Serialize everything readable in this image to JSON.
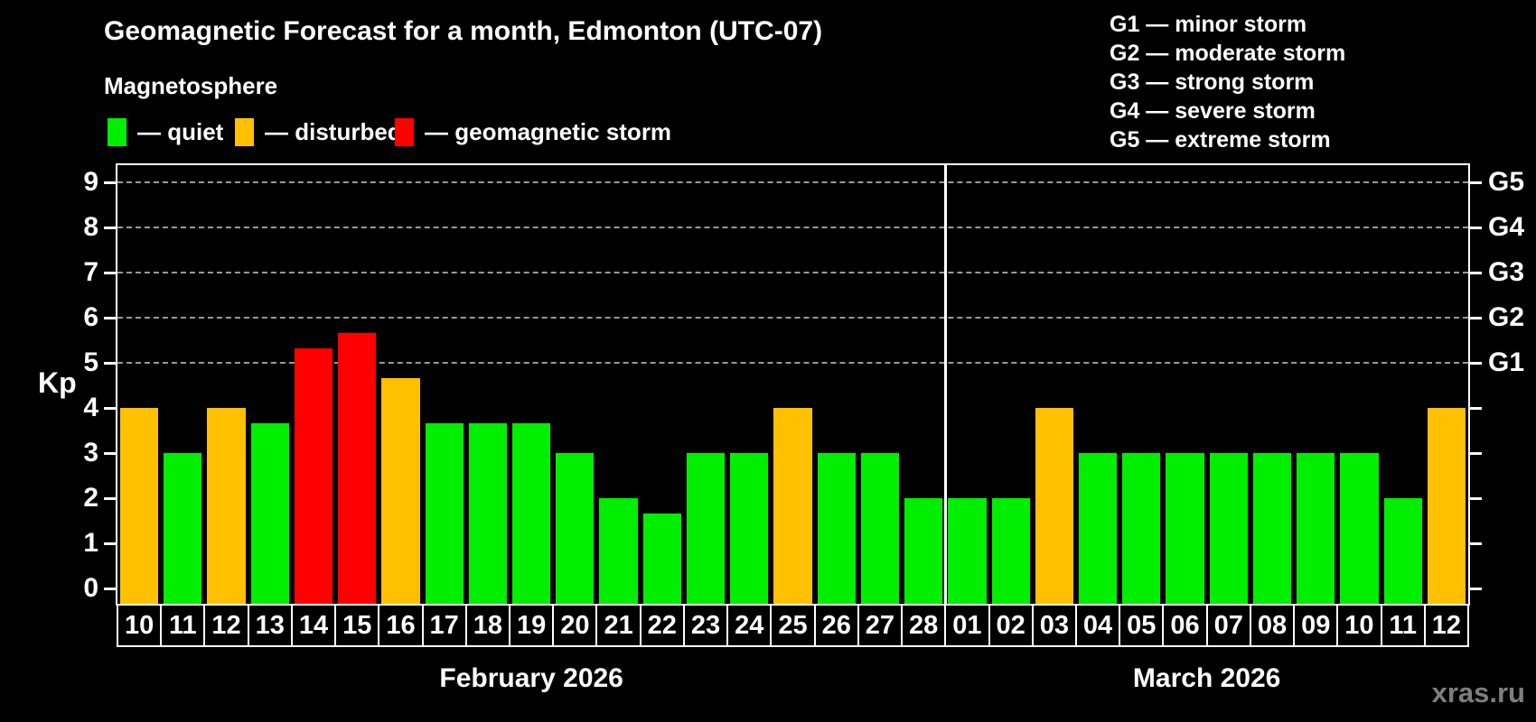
{
  "title": "Geomagnetic Forecast for a month, Edmonton (UTC-07)",
  "subtitle": "Magnetosphere",
  "watermark": "xras.ru",
  "legend": {
    "quiet": {
      "label": "— quiet",
      "color": "#00ee00"
    },
    "disturbed": {
      "label": "— disturbed",
      "color": "#ffc000"
    },
    "storm": {
      "label": "— geomagnetic storm",
      "color": "#ff0000"
    }
  },
  "g_legend": [
    {
      "label": "G1 — minor storm"
    },
    {
      "label": "G2 — moderate storm"
    },
    {
      "label": "G3 — strong storm"
    },
    {
      "label": "G4 — severe storm"
    },
    {
      "label": "G5 — extreme storm"
    }
  ],
  "chart_data": {
    "type": "bar",
    "ylabel": "Kp",
    "ylim": [
      0,
      9
    ],
    "y_ticks": [
      "0",
      "1",
      "2",
      "3",
      "4",
      "5",
      "6",
      "7",
      "8",
      "9"
    ],
    "gridlines_kp": [
      5,
      6,
      7,
      8,
      9
    ],
    "grid_color": "#999999",
    "right_axis": [
      {
        "label": "G1",
        "kp": 5
      },
      {
        "label": "G2",
        "kp": 6
      },
      {
        "label": "G3",
        "kp": 7
      },
      {
        "label": "G4",
        "kp": 8
      },
      {
        "label": "G5",
        "kp": 9
      }
    ],
    "months": [
      {
        "label": "February 2026",
        "days": 19
      },
      {
        "label": "March 2026",
        "days": 12
      }
    ],
    "bars": [
      {
        "day": "10",
        "kp": 4.0,
        "status": "disturbed"
      },
      {
        "day": "11",
        "kp": 3.0,
        "status": "quiet"
      },
      {
        "day": "12",
        "kp": 4.0,
        "status": "disturbed"
      },
      {
        "day": "13",
        "kp": 3.67,
        "status": "quiet"
      },
      {
        "day": "14",
        "kp": 5.33,
        "status": "storm"
      },
      {
        "day": "15",
        "kp": 5.67,
        "status": "storm"
      },
      {
        "day": "16",
        "kp": 4.67,
        "status": "disturbed"
      },
      {
        "day": "17",
        "kp": 3.67,
        "status": "quiet"
      },
      {
        "day": "18",
        "kp": 3.67,
        "status": "quiet"
      },
      {
        "day": "19",
        "kp": 3.67,
        "status": "quiet"
      },
      {
        "day": "20",
        "kp": 3.0,
        "status": "quiet"
      },
      {
        "day": "21",
        "kp": 2.0,
        "status": "quiet"
      },
      {
        "day": "22",
        "kp": 1.67,
        "status": "quiet"
      },
      {
        "day": "23",
        "kp": 3.0,
        "status": "quiet"
      },
      {
        "day": "24",
        "kp": 3.0,
        "status": "quiet"
      },
      {
        "day": "25",
        "kp": 4.0,
        "status": "disturbed"
      },
      {
        "day": "26",
        "kp": 3.0,
        "status": "quiet"
      },
      {
        "day": "27",
        "kp": 3.0,
        "status": "quiet"
      },
      {
        "day": "28",
        "kp": 2.0,
        "status": "quiet"
      },
      {
        "day": "01",
        "kp": 2.0,
        "status": "quiet"
      },
      {
        "day": "02",
        "kp": 2.0,
        "status": "quiet"
      },
      {
        "day": "03",
        "kp": 4.0,
        "status": "disturbed"
      },
      {
        "day": "04",
        "kp": 3.0,
        "status": "quiet"
      },
      {
        "day": "05",
        "kp": 3.0,
        "status": "quiet"
      },
      {
        "day": "06",
        "kp": 3.0,
        "status": "quiet"
      },
      {
        "day": "07",
        "kp": 3.0,
        "status": "quiet"
      },
      {
        "day": "08",
        "kp": 3.0,
        "status": "quiet"
      },
      {
        "day": "09",
        "kp": 3.0,
        "status": "quiet"
      },
      {
        "day": "10",
        "kp": 3.0,
        "status": "quiet"
      },
      {
        "day": "11",
        "kp": 2.0,
        "status": "quiet"
      },
      {
        "day": "12",
        "kp": 4.0,
        "status": "disturbed"
      }
    ]
  }
}
